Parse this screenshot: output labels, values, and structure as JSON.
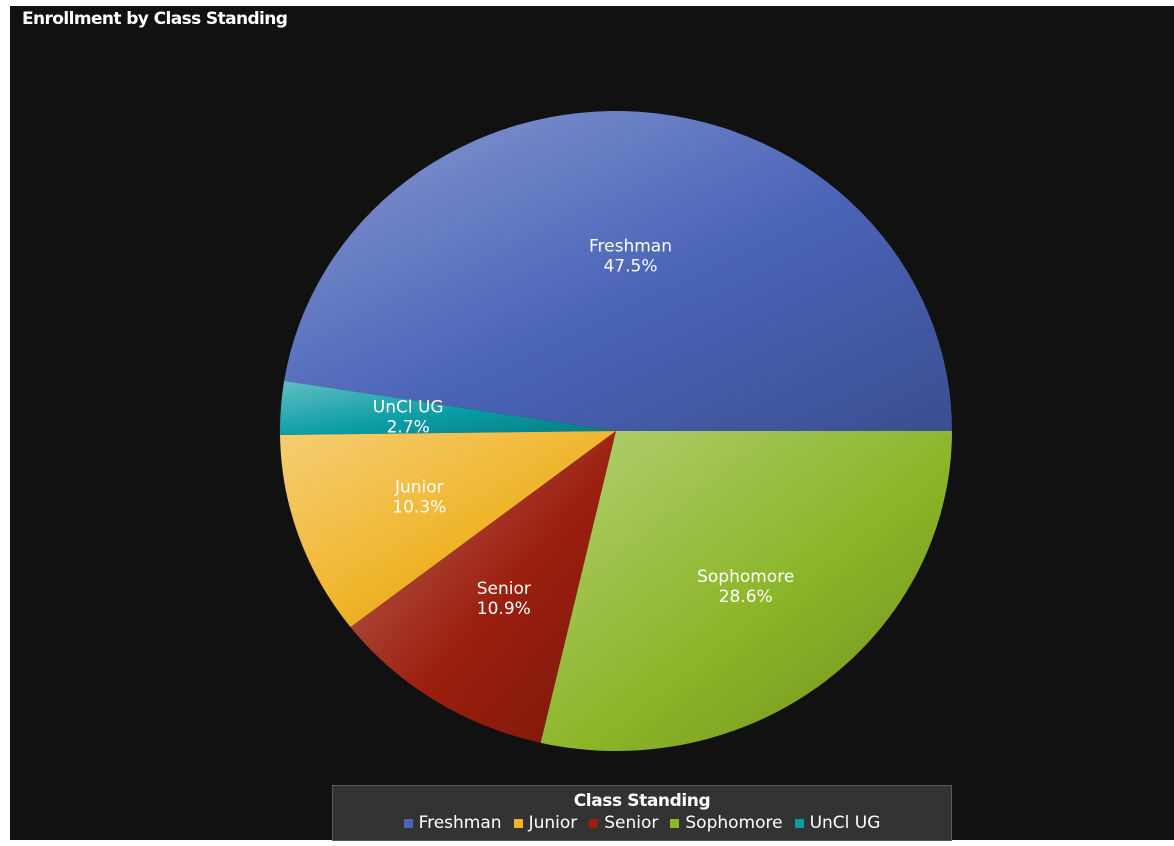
{
  "colors": {
    "background": "#111111",
    "freshman": "#4a64b8",
    "junior": "#f0b429",
    "senior": "#9b1f0e",
    "sophomore": "#8cb528",
    "uncl_ug": "#0a9ca4"
  },
  "chart_data": {
    "type": "pie",
    "title": "Enrollment by Class Standing",
    "legend_title": "Class Standing",
    "legend_position": "bottom-center",
    "slices": [
      {
        "label": "Freshman",
        "value": 47.5,
        "value_label": "47.5%",
        "color": "#4a64b8"
      },
      {
        "label": "Junior",
        "value": 10.3,
        "value_label": "10.3%",
        "color": "#f0b429"
      },
      {
        "label": "Senior",
        "value": 10.9,
        "value_label": "10.9%",
        "color": "#9b1f0e"
      },
      {
        "label": "Sophomore",
        "value": 28.6,
        "value_label": "28.6%",
        "color": "#8cb528"
      },
      {
        "label": "UnCl UG",
        "value": 2.7,
        "value_label": "2.7%",
        "color": "#0a9ca4"
      }
    ],
    "draw_order": [
      "Freshman",
      "UnCl UG",
      "Junior",
      "Senior",
      "Sophomore"
    ]
  }
}
